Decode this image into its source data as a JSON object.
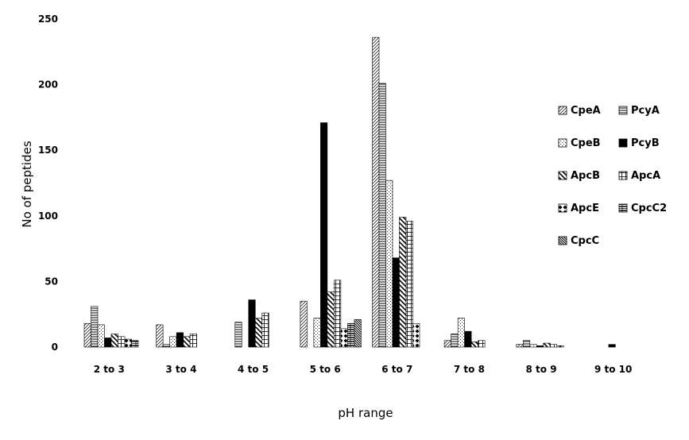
{
  "chart_data": {
    "type": "bar",
    "title": "",
    "xlabel": "pH range",
    "ylabel": "No of peptides",
    "ylim": [
      0,
      250
    ],
    "yticks": [
      0,
      50,
      100,
      150,
      200,
      250
    ],
    "grid": false,
    "legend_position": "right",
    "categories": [
      "2 to 3",
      "3 to 4",
      "4 to 5",
      "5 to 6",
      "6 to 7",
      "7 to 8",
      "8 to 9",
      "9 to 10"
    ],
    "series": [
      {
        "name": "CpeA",
        "pattern": "diag-thin",
        "values": [
          18,
          17,
          0,
          35,
          236,
          5,
          2,
          0
        ]
      },
      {
        "name": "PcyA",
        "pattern": "horizontal",
        "values": [
          31,
          2,
          19,
          0,
          201,
          10,
          5,
          0
        ]
      },
      {
        "name": "CpeB",
        "pattern": "dots",
        "values": [
          17,
          8,
          0,
          22,
          127,
          22,
          2,
          0
        ]
      },
      {
        "name": "PcyB",
        "pattern": "solid",
        "values": [
          7,
          11,
          36,
          171,
          68,
          12,
          1,
          2
        ]
      },
      {
        "name": "ApcB",
        "pattern": "diag-thick",
        "values": [
          10,
          8,
          22,
          42,
          99,
          4,
          3,
          0
        ]
      },
      {
        "name": "ApcA",
        "pattern": "grid",
        "values": [
          8,
          10,
          26,
          51,
          96,
          5,
          2,
          0
        ]
      },
      {
        "name": "ApcE",
        "pattern": "diamond",
        "values": [
          6,
          0,
          0,
          14,
          18,
          0,
          1,
          0
        ]
      },
      {
        "name": "CpcC2",
        "pattern": "brick",
        "values": [
          5,
          0,
          0,
          18,
          0,
          0,
          0,
          0
        ]
      },
      {
        "name": "CpcC",
        "pattern": "diag-dense",
        "values": [
          0,
          0,
          0,
          21,
          0,
          0,
          0,
          0
        ]
      }
    ]
  }
}
